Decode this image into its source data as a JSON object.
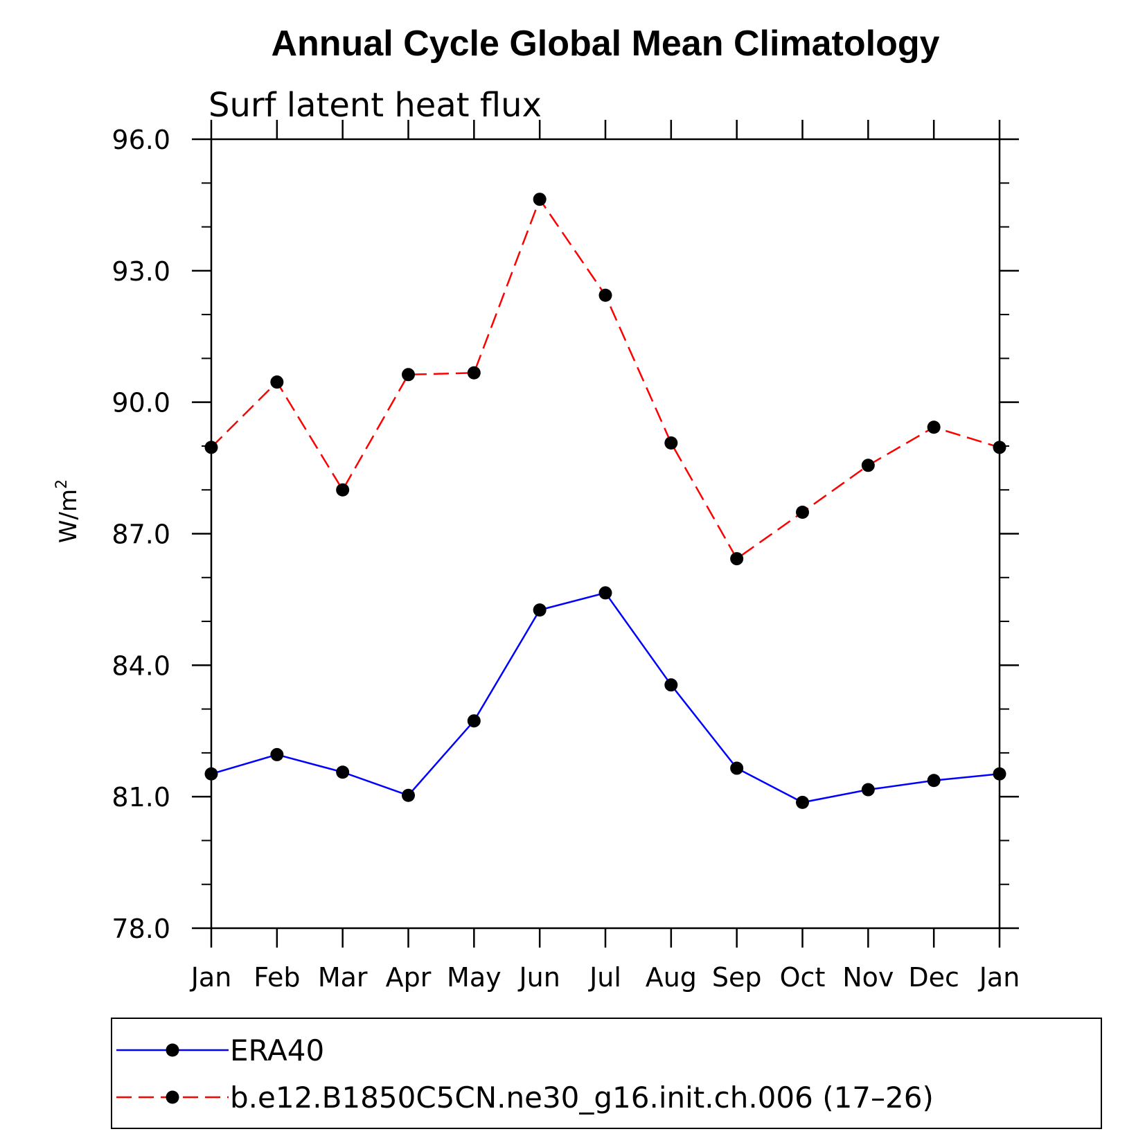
{
  "chart_data": {
    "type": "line",
    "title": "Annual Cycle Global Mean Climatology",
    "subtitle": "Surf latent heat flux",
    "xlabel": "",
    "ylabel": "W/m",
    "ylabel_superscript": "2",
    "categories": [
      "Jan",
      "Feb",
      "Mar",
      "Apr",
      "May",
      "Jun",
      "Jul",
      "Aug",
      "Sep",
      "Oct",
      "Nov",
      "Dec",
      "Jan"
    ],
    "ylim": [
      78.0,
      96.0
    ],
    "yticks": [
      "78.0",
      "81.0",
      "84.0",
      "87.0",
      "90.0",
      "93.0",
      "96.0"
    ],
    "ytick_values": [
      78,
      81,
      84,
      87,
      90,
      93,
      96
    ],
    "grid": false,
    "legend_position": "bottom",
    "series": [
      {
        "name": "ERA40",
        "color": "#0000ff",
        "line_style": "solid",
        "marker": "filled-circle",
        "values": [
          81.52,
          81.96,
          81.56,
          81.03,
          82.73,
          85.26,
          85.65,
          83.55,
          81.65,
          80.87,
          81.16,
          81.37,
          81.52
        ]
      },
      {
        "name": "b.e12.B1850C5CN.ne30_g16.init.ch.006 (17–26)",
        "color": "#ff0000",
        "line_style": "dashed",
        "marker": "filled-circle",
        "values": [
          88.97,
          90.46,
          88.0,
          90.63,
          90.67,
          94.63,
          92.44,
          89.07,
          86.43,
          87.49,
          88.56,
          89.43,
          88.97
        ]
      }
    ]
  }
}
